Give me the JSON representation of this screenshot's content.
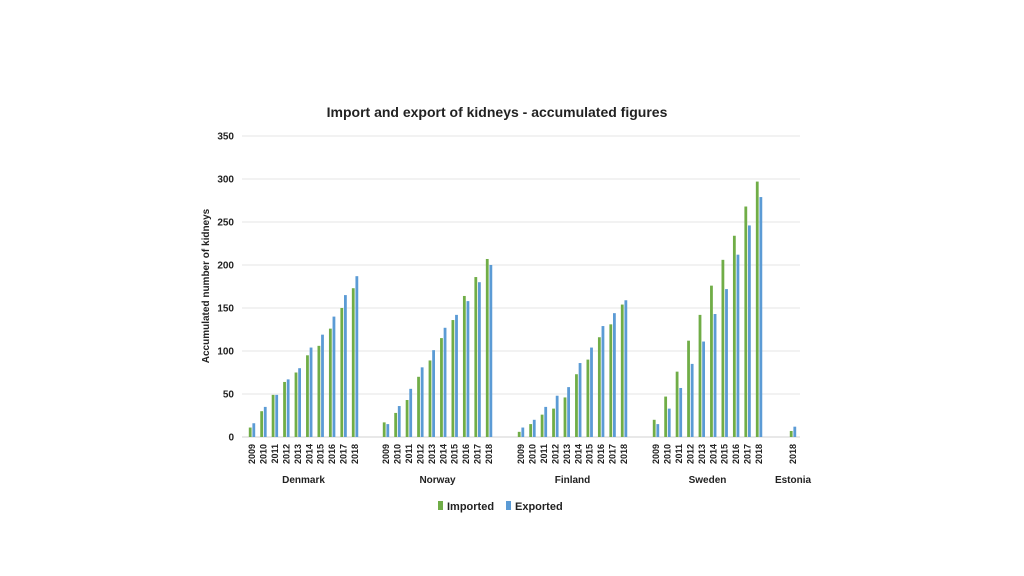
{
  "chart_data": {
    "type": "bar",
    "title": "Import and export of kidneys - accumulated figures",
    "xlabel": "",
    "ylabel": "Accumulated number of kidneys",
    "ylim": [
      0,
      350
    ],
    "yticks": [
      0,
      50,
      100,
      150,
      200,
      250,
      300,
      350
    ],
    "grid": true,
    "legend_placement": "bottom",
    "colors": {
      "Imported": "#70ad47",
      "Exported": "#5b9bd5"
    },
    "groups": [
      {
        "name": "Denmark",
        "categories": [
          "2009",
          "2010",
          "2011",
          "2012",
          "2013",
          "2014",
          "2015",
          "2016",
          "2017",
          "2018"
        ],
        "series": [
          {
            "name": "Imported",
            "values": [
              11,
              30,
              49,
              64,
              75,
              95,
              106,
              126,
              150,
              173
            ]
          },
          {
            "name": "Exported",
            "values": [
              16,
              35,
              49,
              67,
              80,
              104,
              119,
              140,
              165,
              187
            ]
          }
        ]
      },
      {
        "name": "Norway",
        "categories": [
          "2009",
          "2010",
          "2011",
          "2012",
          "2013",
          "2014",
          "2015",
          "2016",
          "2017",
          "2018"
        ],
        "series": [
          {
            "name": "Imported",
            "values": [
              17,
              28,
              43,
              70,
              89,
              115,
              136,
              164,
              186,
              207
            ]
          },
          {
            "name": "Exported",
            "values": [
              15,
              36,
              56,
              81,
              101,
              127,
              142,
              158,
              180,
              200
            ]
          }
        ]
      },
      {
        "name": "Finland",
        "categories": [
          "2009",
          "2010",
          "2011",
          "2012",
          "2013",
          "2014",
          "2015",
          "2016",
          "2017",
          "2018"
        ],
        "series": [
          {
            "name": "Imported",
            "values": [
              6,
              15,
              26,
              33,
              46,
              73,
              90,
              116,
              131,
              154
            ]
          },
          {
            "name": "Exported",
            "values": [
              11,
              20,
              35,
              48,
              58,
              86,
              104,
              129,
              144,
              159
            ]
          }
        ]
      },
      {
        "name": "Sweden",
        "categories": [
          "2009",
          "2010",
          "2011",
          "2012",
          "2013",
          "2014",
          "2015",
          "2016",
          "2017",
          "2018"
        ],
        "series": [
          {
            "name": "Imported",
            "values": [
              20,
              47,
              76,
              112,
              142,
              176,
              206,
              234,
              268,
              297
            ]
          },
          {
            "name": "Exported",
            "values": [
              15,
              33,
              57,
              85,
              111,
              143,
              172,
              212,
              246,
              279
            ]
          }
        ]
      },
      {
        "name": "Estonia",
        "categories": [
          "2018"
        ],
        "series": [
          {
            "name": "Imported",
            "values": [
              7
            ]
          },
          {
            "name": "Exported",
            "values": [
              12
            ]
          }
        ]
      }
    ]
  }
}
